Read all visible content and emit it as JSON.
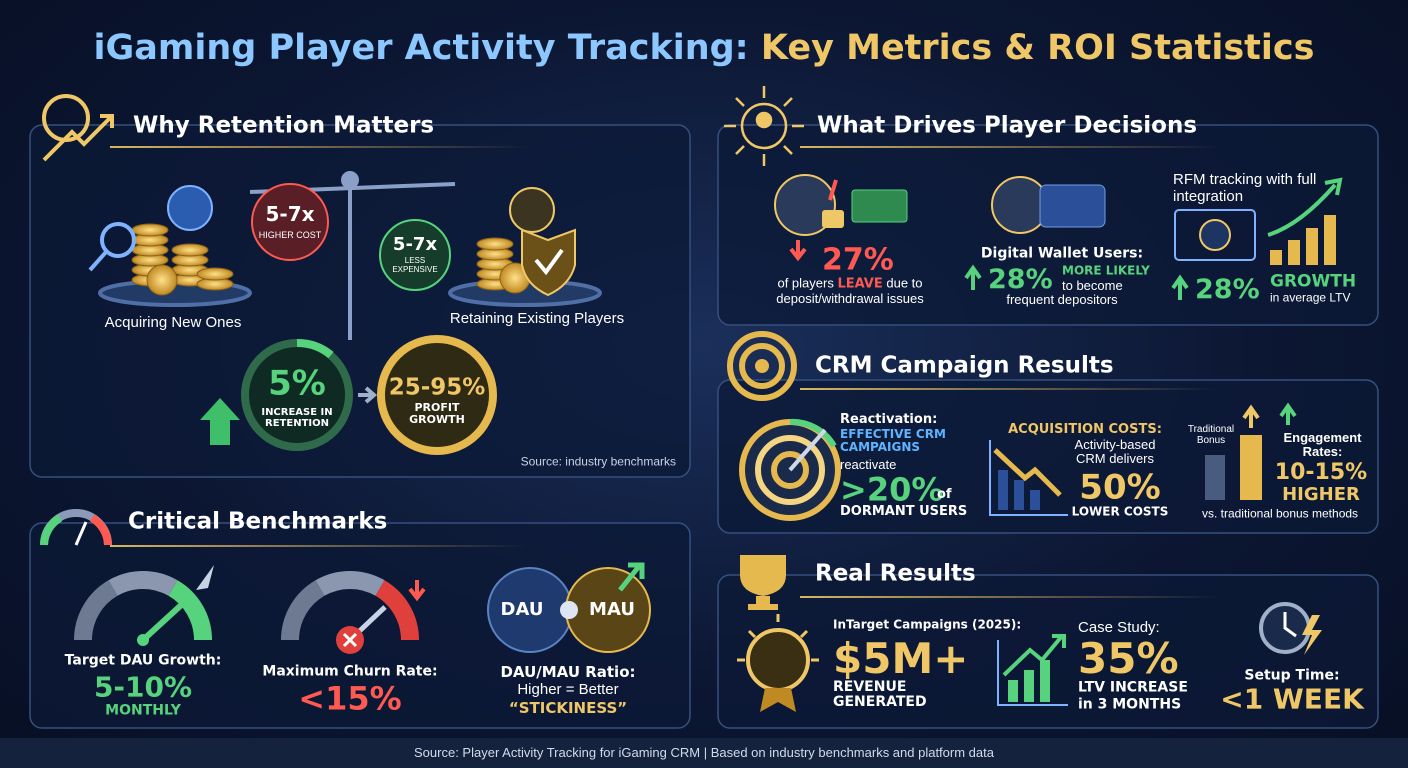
{
  "title": {
    "part1": "iGaming Player Activity Tracking:",
    "part2": "Key Metrics & ROI Statistics"
  },
  "retention": {
    "heading": "Why Retention Matters",
    "acquire_badge": "5-7x",
    "acquire_badge_sub": "HIGHER COST",
    "acquire_label": "Acquiring New Ones",
    "retain_badge": "5-7x",
    "retain_badge_sub": "LESS EXPENSIVE",
    "retain_label": "Retaining Existing Players",
    "increase_value": "5%",
    "increase_label": "INCREASE IN RETENTION",
    "growth_value": "25-95%",
    "growth_label": "PROFIT GROWTH",
    "source": "Source: industry benchmarks"
  },
  "benchmarks": {
    "heading": "Critical Benchmarks",
    "dau_label": "Target DAU Growth:",
    "dau_value": "5-10%",
    "dau_unit": "MONTHLY",
    "churn_label": "Maximum Churn Rate:",
    "churn_value": "<15%",
    "ratio_dau": "DAU",
    "ratio_mau": "MAU",
    "ratio_label": "DAU/MAU Ratio:",
    "ratio_note": "Higher = Better",
    "ratio_tag": "“STICKINESS”"
  },
  "decisions": {
    "heading": "What Drives Player Decisions",
    "leave_value": "27%",
    "leave_pre": "of players",
    "leave_word": "LEAVE",
    "leave_post": "due to",
    "leave_reason": "deposit/withdrawal issues",
    "wallet_label": "Digital Wallet Users:",
    "wallet_value": "28%",
    "wallet_word": "MORE LIKELY",
    "wallet_post": "to become",
    "wallet_reason": "frequent depositors",
    "rfm_label": "RFM tracking with full integration",
    "rfm_value": "28%",
    "rfm_word": "GROWTH",
    "rfm_note": "in average LTV"
  },
  "crm": {
    "heading": "CRM Campaign Results",
    "react_label": "Reactivation:",
    "react_campaigns": "EFFECTIVE CRM CAMPAIGNS",
    "react_verb": "reactivate",
    "react_value": ">20%",
    "react_of": "of",
    "react_users": "DORMANT USERS",
    "acq_label": "ACQUISITION COSTS:",
    "acq_note": "Activity-based CRM delivers",
    "acq_value": "50%",
    "acq_unit": "LOWER COSTS",
    "trad_label": "Traditional Bonus",
    "eng_label": "Engagement Rates:",
    "eng_value": "10-15%",
    "eng_word": "HIGHER",
    "eng_note": "vs. traditional bonus methods"
  },
  "results": {
    "heading": "Real Results",
    "campaign_label": "InTarget Campaigns (2025):",
    "campaign_value": "$5M+",
    "campaign_unit": "REVENUE GENERATED",
    "case_label": "Case Study:",
    "case_value": "35%",
    "case_unit": "LTV INCREASE",
    "case_period": "in 3 MONTHS",
    "setup_label": "Setup Time:",
    "setup_value": "<1 WEEK"
  },
  "footer": "Source: Player Activity Tracking for iGaming CRM | Based on industry benchmarks and platform data"
}
